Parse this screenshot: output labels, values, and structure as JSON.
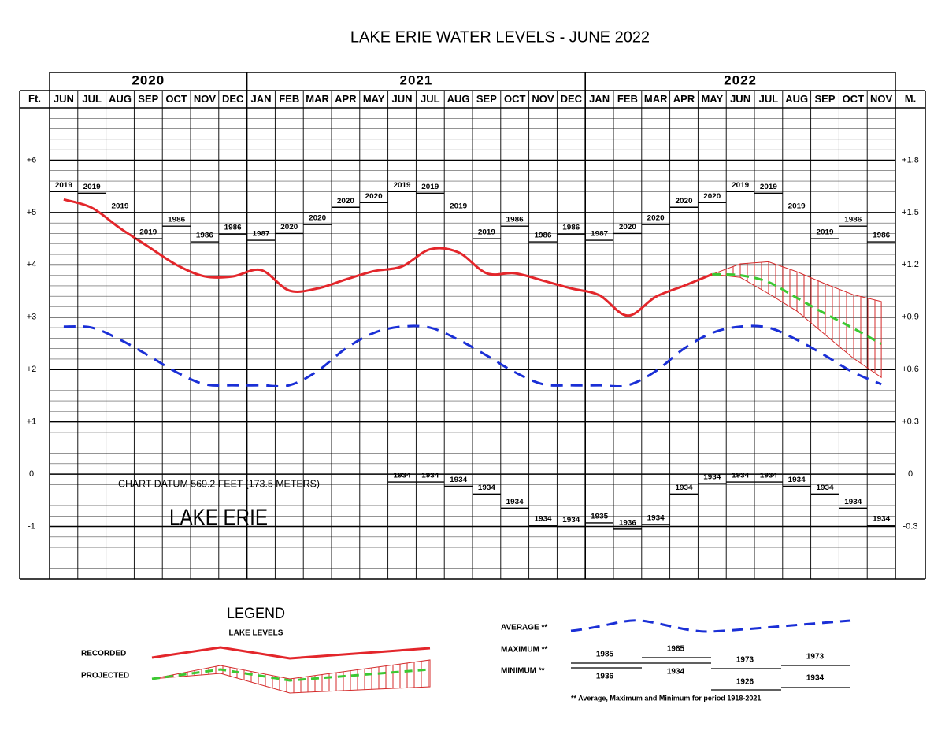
{
  "chart_data": {
    "type": "line",
    "title": "LAKE ERIE WATER LEVELS - JUNE 2022",
    "y_label": "Ft.",
    "y2_label": "M.",
    "years": [
      {
        "year": "2020",
        "months": [
          "JUN",
          "JUL",
          "AUG",
          "SEP",
          "OCT",
          "NOV",
          "DEC"
        ]
      },
      {
        "year": "2021",
        "months": [
          "JAN",
          "FEB",
          "MAR",
          "APR",
          "MAY",
          "JUN",
          "JUL",
          "AUG",
          "SEP",
          "OCT",
          "NOV",
          "DEC"
        ]
      },
      {
        "year": "2022",
        "months": [
          "JAN",
          "FEB",
          "MAR",
          "APR",
          "MAY",
          "JUN",
          "JUL",
          "AUG",
          "SEP",
          "OCT",
          "NOV"
        ]
      }
    ],
    "ylim": [
      -2,
      7
    ],
    "yticks": [
      {
        "value": 6,
        "label": "+6"
      },
      {
        "value": 5,
        "label": "+5"
      },
      {
        "value": 4,
        "label": "+4"
      },
      {
        "value": 3,
        "label": "+3"
      },
      {
        "value": 2,
        "label": "+2"
      },
      {
        "value": 1,
        "label": "+1"
      },
      0,
      -1
    ],
    "y2lim": [
      -0.6096,
      2.1336
    ],
    "y2ticks": [
      {
        "value": 1.8288,
        "label": "+1.8"
      },
      {
        "value": 1.524,
        "label": "+1.5"
      },
      {
        "value": 1.2192,
        "label": "+1.2"
      },
      {
        "value": 0.9144,
        "label": "+0.9"
      },
      {
        "value": 0.6096,
        "label": "+0.6"
      },
      {
        "value": 0.3048,
        "label": "+0.3"
      },
      0,
      {
        "value": -0.3048,
        "label": "-0.3"
      }
    ],
    "grid": true,
    "minor_grid": 0.2,
    "series": [
      {
        "name": "RECORDED",
        "color": "#e3262b",
        "style": "solid",
        "values": [
          5.25,
          5.09,
          4.7,
          4.35,
          4.0,
          3.78,
          3.78,
          3.9,
          3.51,
          3.55,
          3.72,
          3.88,
          3.97,
          4.3,
          4.24,
          3.84,
          3.84,
          3.7,
          3.55,
          3.42,
          3.03,
          3.39,
          3.6,
          3.82,
          null,
          null,
          null,
          null,
          null,
          null
        ]
      },
      {
        "name": "PROJECTED",
        "color": "#3cc832",
        "style": "dashed",
        "range_color": "#d42a2a",
        "values": [
          null,
          null,
          null,
          null,
          null,
          null,
          null,
          null,
          null,
          null,
          null,
          null,
          null,
          null,
          null,
          null,
          null,
          null,
          null,
          null,
          null,
          null,
          null,
          3.82,
          3.8,
          3.67,
          3.37,
          3.07,
          2.79,
          2.49
        ],
        "high": [
          null,
          null,
          null,
          null,
          null,
          null,
          null,
          null,
          null,
          null,
          null,
          null,
          null,
          null,
          null,
          null,
          null,
          null,
          null,
          null,
          null,
          null,
          null,
          3.82,
          4.02,
          4.06,
          3.87,
          3.64,
          3.43,
          3.3
        ],
        "low": [
          null,
          null,
          null,
          null,
          null,
          null,
          null,
          null,
          null,
          null,
          null,
          null,
          null,
          null,
          null,
          null,
          null,
          null,
          null,
          null,
          null,
          null,
          null,
          3.82,
          3.76,
          3.45,
          3.12,
          2.67,
          2.22,
          1.85
        ]
      },
      {
        "name": "AVERAGE **",
        "color": "#1a2fd6",
        "style": "dashed",
        "values": [
          2.82,
          2.8,
          2.57,
          2.27,
          1.95,
          1.72,
          1.7,
          1.7,
          1.7,
          1.97,
          2.4,
          2.7,
          2.82,
          2.8,
          2.57,
          2.27,
          1.95,
          1.72,
          1.7,
          1.7,
          1.7,
          1.97,
          2.4,
          2.7,
          2.82,
          2.8,
          2.57,
          2.27,
          1.95,
          1.72
        ]
      },
      {
        "name": "MAXIMUM **",
        "color": "#000000",
        "style": "marker",
        "values": [
          5.4,
          5.37,
          5.0,
          4.5,
          4.74,
          4.44,
          4.59,
          4.47,
          4.6,
          4.77,
          5.1,
          5.19,
          5.4,
          5.37,
          5.0,
          4.5,
          4.74,
          4.44,
          4.59,
          4.47,
          4.6,
          4.77,
          5.1,
          5.19,
          5.4,
          5.37,
          5.0,
          4.5,
          4.74,
          4.44
        ],
        "years": [
          "2019",
          "2019",
          "2019",
          "2019",
          "1986",
          "1986",
          "1986",
          "1987",
          "2020",
          "2020",
          "2020",
          "2020",
          "2019",
          "2019",
          "2019",
          "2019",
          "1986",
          "1986",
          "1986",
          "1987",
          "2020",
          "2020",
          "2020",
          "2020",
          "2019",
          "2019",
          "2019",
          "2019",
          "1986",
          "1986"
        ]
      },
      {
        "name": "MINIMUM **",
        "color": "#000000",
        "style": "marker",
        "values": [
          null,
          null,
          null,
          null,
          null,
          null,
          null,
          null,
          null,
          null,
          null,
          null,
          -0.15,
          -0.15,
          -0.23,
          -0.38,
          -0.65,
          -0.98,
          -1.0,
          -0.93,
          -1.05,
          -0.96,
          -0.38,
          -0.18,
          -0.15,
          -0.15,
          -0.23,
          -0.38,
          -0.65,
          -0.98
        ],
        "years": [
          null,
          null,
          null,
          null,
          null,
          null,
          null,
          null,
          null,
          null,
          null,
          null,
          "1934",
          "1934",
          "1934",
          "1934",
          "1934",
          "1934",
          "1934",
          "1935",
          "1936",
          "1934",
          "1934",
          "1934",
          "1934",
          "1934",
          "1934",
          "1934",
          "1934",
          "1934"
        ]
      }
    ],
    "annotations": [
      "CHART DATUM  569.2 FEET (173.5 METERS)",
      "LAKE ERIE"
    ],
    "legend": {
      "title": "LEGEND",
      "subtitle": "LAKE LEVELS",
      "maximum_samples": [
        "1985",
        "1985",
        "1973",
        "1973"
      ],
      "minimum_samples": [
        "1936",
        "1934",
        "1926",
        "1934"
      ],
      "note": "** Average, Maximum and Minimum for period 1918-2021"
    }
  }
}
